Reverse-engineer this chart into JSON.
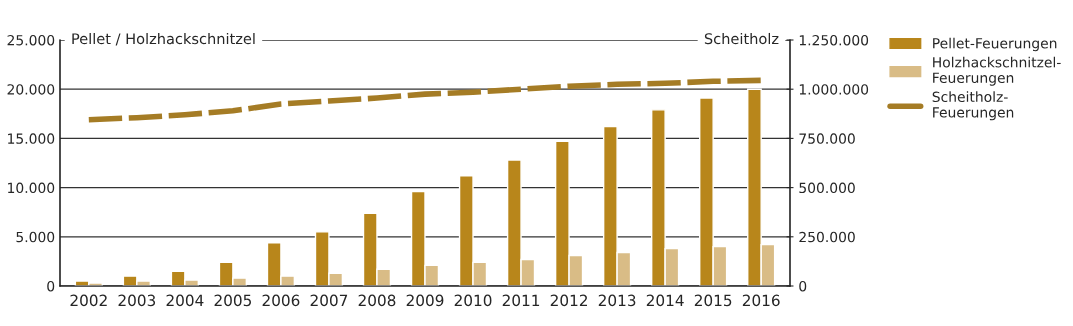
{
  "chart_data": {
    "type": "bar",
    "ylabel": "Pellet / Holzhackschnitzel",
    "y2label": "Scheitholz",
    "categories": [
      "2002",
      "2003",
      "2004",
      "2005",
      "2006",
      "2007",
      "2008",
      "2009",
      "2010",
      "2011",
      "2012",
      "2013",
      "2014",
      "2015",
      "2016"
    ],
    "series": [
      {
        "name": "Pellet-Feuerungen",
        "color": "#b8861b",
        "values": [
          500,
          1000,
          1500,
          2400,
          4400,
          5500,
          7400,
          9600,
          11200,
          12800,
          14700,
          16200,
          17900,
          19100,
          20000
        ]
      },
      {
        "name": "Holzhackschnitzel-\nFeuerungen",
        "color": "#d9bc86",
        "values": [
          300,
          500,
          600,
          800,
          1000,
          1300,
          1700,
          2100,
          2400,
          2700,
          3100,
          3400,
          3800,
          4000,
          4200
        ]
      },
      {
        "name": "Scheitholz-\nFeuerungen",
        "type": "line",
        "axis": "y2",
        "color": "#a57c25",
        "line_style": "dashed",
        "values": [
          845000,
          855000,
          870000,
          890000,
          925000,
          940000,
          955000,
          975000,
          985000,
          1000000,
          1015000,
          1025000,
          1030000,
          1040000,
          1045000
        ]
      }
    ],
    "ylim": [
      0,
      25000
    ],
    "yticks": [
      {
        "value": 0,
        "label": "0"
      },
      {
        "value": 5000,
        "label": "5.000"
      },
      {
        "value": 10000,
        "label": "10.000"
      },
      {
        "value": 15000,
        "label": "15.000"
      },
      {
        "value": 20000,
        "label": "20.000"
      },
      {
        "value": 25000,
        "label": "25.000"
      }
    ],
    "y2lim": [
      0,
      1250000
    ],
    "y2ticks": [
      {
        "value": 0,
        "label": "0"
      },
      {
        "value": 250000,
        "label": "250.000"
      },
      {
        "value": 500000,
        "label": "500.000"
      },
      {
        "value": 750000,
        "label": "750.000"
      },
      {
        "value": 1000000,
        "label": "1.000.000"
      },
      {
        "value": 1250000,
        "label": "1.250.000"
      }
    ],
    "grid": "y",
    "legend": "top right"
  }
}
